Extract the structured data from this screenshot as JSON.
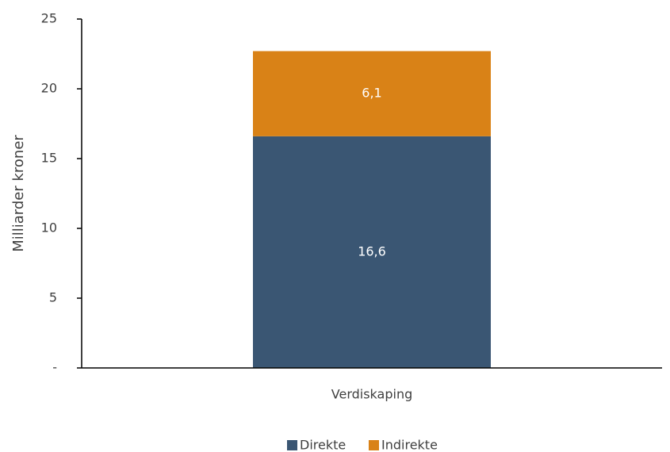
{
  "chart_data": {
    "type": "stacked-bar",
    "y_label": "Milliarder kroner",
    "categories": [
      "Verdiskaping"
    ],
    "series": [
      {
        "name": "Direkte",
        "color": "#3a5673",
        "values": [
          16.6
        ],
        "value_labels": [
          "16,6"
        ]
      },
      {
        "name": "Indirekte",
        "color": "#d98217",
        "values": [
          6.1
        ],
        "value_labels": [
          "6,1"
        ]
      }
    ],
    "ylim": [
      0,
      25
    ],
    "yticks": [
      {
        "value": 0,
        "label": "-"
      },
      5,
      10,
      15,
      20,
      25
    ],
    "legend": "bottom"
  }
}
